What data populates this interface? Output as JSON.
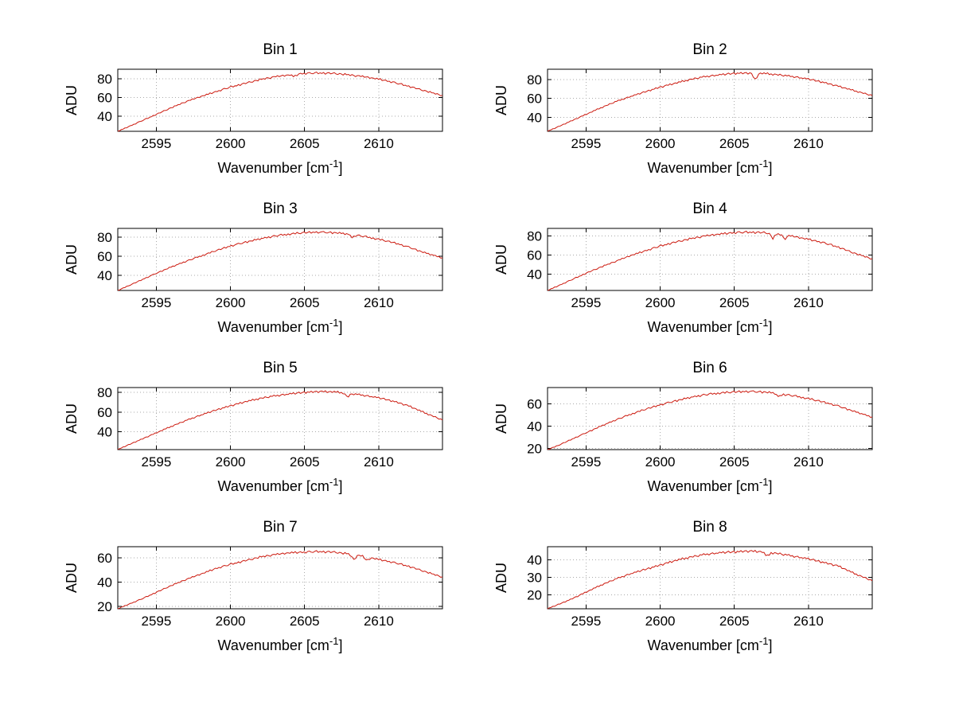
{
  "figure": {
    "background": "#ffffff",
    "rows": 4,
    "cols": 2
  },
  "chart_common": {
    "type": "line",
    "xlabel": "Wavenumber [cm⁻¹]",
    "ylabel": "ADU",
    "xlim": [
      2592.4,
      2614.3
    ],
    "xticks": [
      2595,
      2600,
      2605,
      2610
    ],
    "grid": true,
    "grid_style": "dotted",
    "grid_color": "#aaaaaa",
    "axes_color": "#000000",
    "line_color": "#cc1a0f",
    "x_samples": [
      2592.4,
      2593,
      2594,
      2595,
      2596,
      2597,
      2598,
      2599,
      2600,
      2601,
      2602,
      2603,
      2604,
      2605,
      2606,
      2607,
      2608,
      2609,
      2610,
      2611,
      2612,
      2613,
      2614.3
    ]
  },
  "chart_data": [
    {
      "type": "line",
      "title": "Bin 1",
      "yticks": [
        40,
        60,
        80
      ],
      "ylim": [
        24,
        90
      ],
      "y_samples": [
        24,
        28,
        35,
        42,
        49,
        55.5,
        61,
        66,
        71,
        75,
        79,
        82,
        84,
        85.5,
        86,
        85.5,
        84,
        82,
        79.5,
        76,
        72,
        67.5,
        62
      ],
      "noise": "a",
      "noise_amp": 1.1,
      "dips": [
        {
          "x": 2604.3,
          "depth": 2.5
        }
      ]
    },
    {
      "type": "line",
      "title": "Bin 2",
      "yticks": [
        40,
        60,
        80
      ],
      "ylim": [
        25,
        91
      ],
      "y_samples": [
        25,
        29,
        36,
        43,
        50,
        56.5,
        62,
        67,
        72,
        76,
        80,
        83,
        85,
        86.5,
        87,
        86.5,
        85,
        83,
        80.5,
        77,
        73,
        68.5,
        63
      ],
      "noise": "b",
      "noise_amp": 1.1,
      "dips": [
        {
          "x": 2606.4,
          "depth": 7
        }
      ]
    },
    {
      "type": "line",
      "title": "Bin 3",
      "yticks": [
        40,
        60,
        80
      ],
      "ylim": [
        24,
        89
      ],
      "y_samples": [
        24,
        28,
        35,
        42,
        48.5,
        54.5,
        60,
        65.5,
        70.5,
        74.5,
        78,
        81,
        83,
        84.5,
        85,
        84.5,
        83,
        80.5,
        77.5,
        74,
        69.5,
        64,
        58
      ],
      "noise": "c",
      "noise_amp": 1.1,
      "dips": [
        {
          "x": 2608.2,
          "depth": 3
        }
      ]
    },
    {
      "type": "line",
      "title": "Bin 4",
      "yticks": [
        40,
        60,
        80
      ],
      "ylim": [
        23,
        88
      ],
      "y_samples": [
        23,
        27,
        34,
        41,
        47.5,
        53.5,
        59.5,
        64.5,
        69.5,
        73.5,
        77,
        80,
        82,
        83.5,
        84,
        83.5,
        82,
        79.5,
        76.5,
        73,
        68.5,
        62.5,
        56
      ],
      "noise": "a",
      "noise_amp": 1.2,
      "dips": [
        {
          "x": 2607.6,
          "depth": 5
        },
        {
          "x": 2608.4,
          "depth": 4
        }
      ]
    },
    {
      "type": "line",
      "title": "Bin 5",
      "yticks": [
        40,
        60,
        80
      ],
      "ylim": [
        22,
        85
      ],
      "y_samples": [
        22,
        26,
        32.5,
        39,
        45.5,
        51.5,
        57,
        62,
        66.5,
        70.5,
        74,
        76.5,
        78.5,
        80,
        81,
        80.5,
        79,
        77,
        74.5,
        71,
        66.5,
        60,
        52
      ],
      "noise": "b",
      "noise_amp": 1.1,
      "dips": [
        {
          "x": 2607.9,
          "depth": 4
        }
      ]
    },
    {
      "type": "line",
      "title": "Bin 6",
      "yticks": [
        20,
        40,
        60
      ],
      "ylim": [
        19,
        74.5
      ],
      "y_samples": [
        19,
        22,
        28,
        34,
        40,
        45.5,
        50.5,
        55,
        59,
        62.5,
        65.5,
        68,
        69.5,
        70.5,
        71,
        70.5,
        69,
        67,
        64.5,
        61.5,
        58,
        53.5,
        48
      ],
      "noise": "c",
      "noise_amp": 1.0,
      "dips": [
        {
          "x": 2608.0,
          "depth": 3
        }
      ]
    },
    {
      "type": "line",
      "title": "Bin 7",
      "yticks": [
        20,
        40,
        60
      ],
      "ylim": [
        18,
        69
      ],
      "y_samples": [
        18,
        21,
        26,
        31.5,
        37,
        42,
        46.5,
        51,
        54.5,
        57.5,
        60.5,
        62.5,
        64,
        64.5,
        65,
        64.5,
        63,
        61,
        58.5,
        56,
        53,
        49,
        44
      ],
      "noise": "a",
      "noise_amp": 0.9,
      "dips": [
        {
          "x": 2608.3,
          "depth": 4
        },
        {
          "x": 2609.2,
          "depth": 3
        }
      ]
    },
    {
      "type": "line",
      "title": "Bin 8",
      "yticks": [
        20,
        30,
        40
      ],
      "ylim": [
        12,
        47.5
      ],
      "y_samples": [
        12,
        14,
        17.5,
        21.5,
        25.5,
        29,
        32,
        34.5,
        37,
        39.5,
        41.5,
        43,
        44,
        44.5,
        45,
        44.5,
        43.5,
        42,
        40.5,
        38.5,
        36.5,
        32.5,
        28
      ],
      "noise": "b",
      "noise_amp": 0.7,
      "dips": [
        {
          "x": 2607.2,
          "depth": 2.5
        }
      ]
    }
  ],
  "noise_patterns": {
    "a": [
      0.2,
      -0.5,
      0.7,
      -0.3,
      0.9,
      -0.8,
      0.1,
      0.6,
      -0.4,
      0.3,
      -0.9,
      0.5,
      0.8,
      -0.2,
      -0.6,
      0.4,
      1.0,
      -0.7,
      0.2,
      -0.4,
      0.6,
      -1.0,
      0.3,
      0.7,
      -0.5,
      0.1,
      0.8,
      -0.3,
      -0.7,
      0.5,
      0.2,
      -0.8,
      0.9,
      -0.1,
      0.4,
      -0.6,
      0.7,
      0.0,
      -0.9,
      0.3,
      0.5,
      -0.2,
      0.8,
      -0.4,
      0.1,
      0.6,
      -0.7,
      0.2
    ],
    "b": [
      -0.3,
      0.6,
      -0.1,
      0.8,
      -0.7,
      0.2,
      0.9,
      -0.5,
      0.1,
      0.7,
      -0.9,
      0.4,
      -0.2,
      0.8,
      -0.6,
      0.3,
      0.5,
      -1.0,
      0.2,
      0.6,
      -0.3,
      0.9,
      -0.8,
      0.1,
      0.4,
      -0.5,
      0.7,
      -0.2,
      1.0,
      -0.6,
      0.3,
      -0.9,
      0.5,
      0.2,
      -0.4,
      0.8,
      -0.1,
      -0.7,
      0.6,
      0.0,
      0.9,
      -0.3,
      0.4,
      -0.8,
      0.2,
      0.7,
      -0.5,
      0.1
    ],
    "c": [
      0.5,
      -0.8,
      0.2,
      0.7,
      -0.4,
      1.0,
      -0.1,
      -0.6,
      0.3,
      0.8,
      -0.5,
      0.1,
      0.9,
      -0.7,
      0.4,
      -0.2,
      0.6,
      -0.9,
      0.0,
      0.5,
      0.8,
      -0.3,
      -0.6,
      0.2,
      0.7,
      -1.0,
      0.4,
      0.1,
      -0.5,
      0.9,
      -0.2,
      0.6,
      -0.8,
      0.3,
      0.0,
      0.7,
      -0.4,
      0.5,
      -0.9,
      0.2,
      0.8,
      -0.1,
      -0.6,
      0.4,
      1.0,
      -0.3,
      0.5,
      -0.7
    ]
  }
}
